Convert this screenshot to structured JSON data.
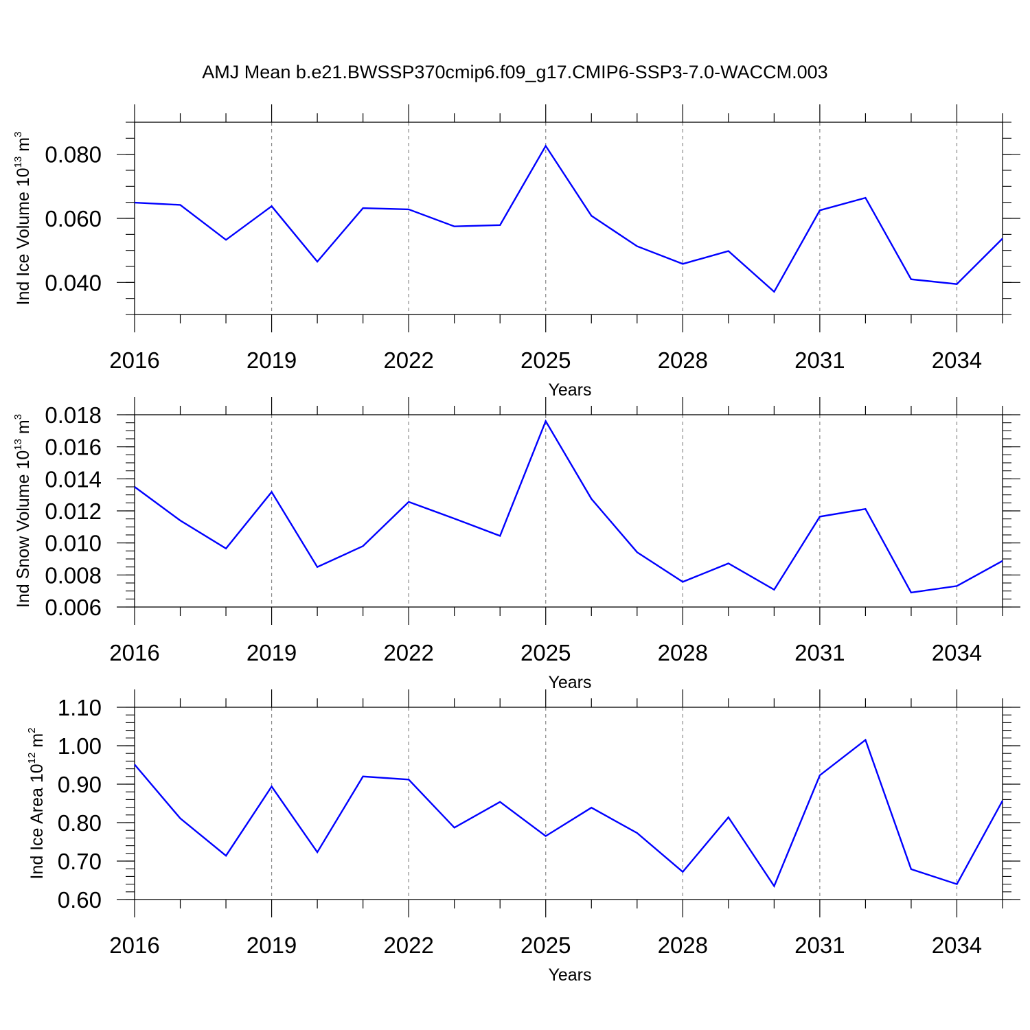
{
  "title": "AMJ Mean b.e21.BWSSP370cmip6.f09_g17.CMIP6-SSP3-7.0-WACCM.003",
  "line_color": "#0000ff",
  "chart_data": [
    {
      "type": "line",
      "ylabel": {
        "base": "Ind Ice Volume 10",
        "exp1": "13",
        "mid": " m",
        "exp2": "3"
      },
      "xlabel": "Years",
      "xlim": [
        2016,
        2035
      ],
      "ylim": [
        0.03,
        0.09
      ],
      "x_ticks": [
        2016,
        2019,
        2022,
        2025,
        2028,
        2031,
        2034
      ],
      "x_tick_labels": [
        "2016",
        "2019",
        "2022",
        "2025",
        "2028",
        "2031",
        "2034"
      ],
      "y_ticks": [
        0.04,
        0.06,
        0.08
      ],
      "y_tick_labels": [
        "0.040",
        "0.060",
        "0.080"
      ],
      "y_minor_step": 0.005,
      "grid_x": true,
      "x": [
        2016,
        2017,
        2018,
        2019,
        2020,
        2021,
        2022,
        2023,
        2024,
        2025,
        2026,
        2027,
        2028,
        2029,
        2030,
        2031,
        2032,
        2033,
        2034,
        2035
      ],
      "values": [
        0.0649,
        0.0642,
        0.0533,
        0.0638,
        0.0465,
        0.0632,
        0.0628,
        0.0575,
        0.0579,
        0.0826,
        0.0608,
        0.0513,
        0.0458,
        0.0498,
        0.0371,
        0.0625,
        0.0664,
        0.041,
        0.0395,
        0.0537
      ]
    },
    {
      "type": "line",
      "ylabel": {
        "base": "Ind Snow Volume 10",
        "exp1": "13",
        "mid": " m",
        "exp2": "3"
      },
      "xlabel": "Years",
      "xlim": [
        2016,
        2035
      ],
      "ylim": [
        0.006,
        0.018
      ],
      "x_ticks": [
        2016,
        2019,
        2022,
        2025,
        2028,
        2031,
        2034
      ],
      "x_tick_labels": [
        "2016",
        "2019",
        "2022",
        "2025",
        "2028",
        "2031",
        "2034"
      ],
      "y_ticks": [
        0.006,
        0.008,
        0.01,
        0.012,
        0.014,
        0.016,
        0.018
      ],
      "y_tick_labels": [
        "0.006",
        "0.008",
        "0.010",
        "0.012",
        "0.014",
        "0.016",
        "0.018"
      ],
      "y_minor_step": 0.0005,
      "grid_x": true,
      "x": [
        2016,
        2017,
        2018,
        2019,
        2020,
        2021,
        2022,
        2023,
        2024,
        2025,
        2026,
        2027,
        2028,
        2029,
        2030,
        2031,
        2032,
        2033,
        2034,
        2035
      ],
      "values": [
        0.0135,
        0.0114,
        0.00965,
        0.01318,
        0.0085,
        0.0098,
        0.01256,
        0.01152,
        0.01044,
        0.0176,
        0.01275,
        0.00942,
        0.00757,
        0.00872,
        0.00708,
        0.01164,
        0.01212,
        0.0069,
        0.00731,
        0.00888
      ]
    },
    {
      "type": "line",
      "ylabel": {
        "base": "Ind Ice Area 10",
        "exp1": "12",
        "mid": " m",
        "exp2": "2"
      },
      "xlabel": "Years",
      "xlim": [
        2016,
        2035
      ],
      "ylim": [
        0.6,
        1.1
      ],
      "x_ticks": [
        2016,
        2019,
        2022,
        2025,
        2028,
        2031,
        2034
      ],
      "x_tick_labels": [
        "2016",
        "2019",
        "2022",
        "2025",
        "2028",
        "2031",
        "2034"
      ],
      "y_ticks": [
        0.6,
        0.7,
        0.8,
        0.9,
        1.0,
        1.1
      ],
      "y_tick_labels": [
        "0.60",
        "0.70",
        "0.80",
        "0.90",
        "1.00",
        "1.10"
      ],
      "y_minor_step": 0.02,
      "grid_x": true,
      "x": [
        2016,
        2017,
        2018,
        2019,
        2020,
        2021,
        2022,
        2023,
        2024,
        2025,
        2026,
        2027,
        2028,
        2029,
        2030,
        2031,
        2032,
        2033,
        2034,
        2035
      ],
      "values": [
        0.951,
        0.811,
        0.714,
        0.894,
        0.723,
        0.92,
        0.912,
        0.787,
        0.854,
        0.765,
        0.839,
        0.773,
        0.672,
        0.814,
        0.635,
        0.923,
        1.015,
        0.679,
        0.64,
        0.857
      ]
    }
  ]
}
